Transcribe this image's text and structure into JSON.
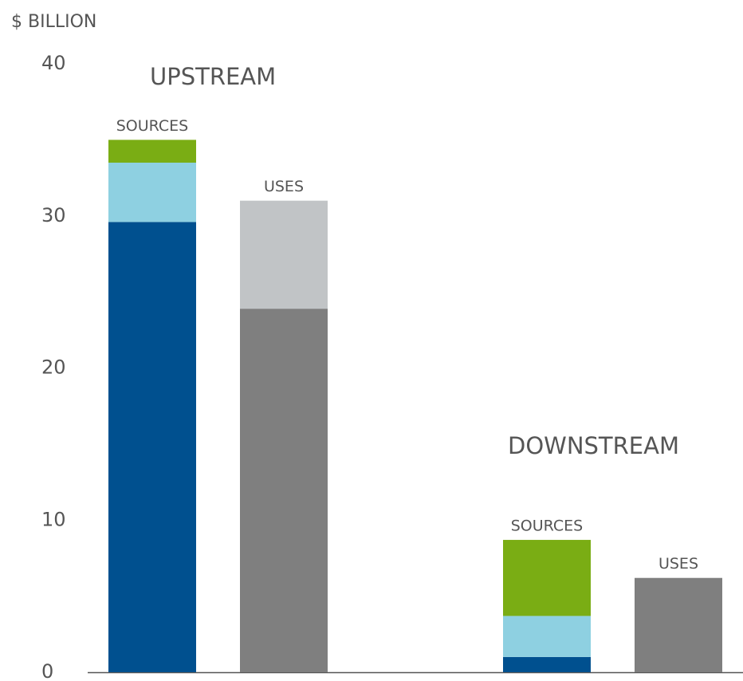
{
  "chart_data": {
    "type": "stacked_bar",
    "ylabel": "$ BILLION",
    "groups": [
      "UPSTREAM",
      "DOWNSTREAM"
    ],
    "categories": [
      "SOURCES",
      "USES",
      "SOURCES",
      "USES"
    ],
    "stacks": [
      {
        "segments": [
          {
            "value": 29.6,
            "color": "#00508f"
          },
          {
            "value": 3.9,
            "color": "#8ed0e1"
          },
          {
            "value": 1.5,
            "color": "#7aad14"
          }
        ]
      },
      {
        "segments": [
          {
            "value": 23.9,
            "color": "#7f7f7f"
          },
          {
            "value": 7.1,
            "color": "#c1c4c6"
          }
        ]
      },
      {
        "segments": [
          {
            "value": 1.0,
            "color": "#00508f"
          },
          {
            "value": 2.7,
            "color": "#8ed0e1"
          },
          {
            "value": 5.0,
            "color": "#7aad14"
          }
        ]
      },
      {
        "segments": [
          {
            "value": 6.2,
            "color": "#7f7f7f"
          }
        ]
      }
    ],
    "ylim": [
      0,
      40
    ],
    "yticks": [
      0,
      10,
      20,
      30,
      40
    ],
    "grid": false
  }
}
